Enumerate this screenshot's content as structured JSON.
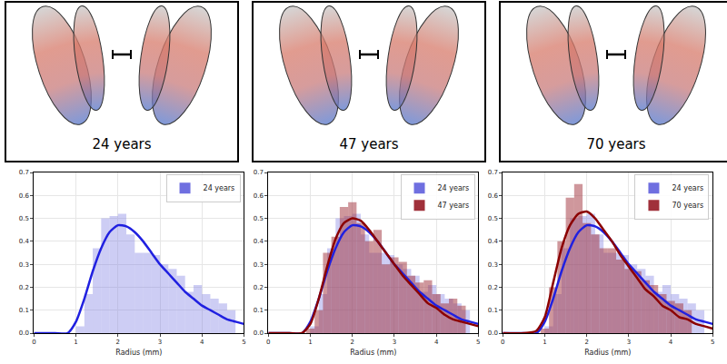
{
  "renderings": [
    "24 years",
    "47 years",
    "70 years"
  ],
  "chart_data": [
    {
      "type": "histogram",
      "x_label": "Radius (mm)",
      "xlim": [
        0,
        5
      ],
      "xticks": [
        0,
        1,
        2,
        3,
        4,
        5
      ],
      "ylim": [
        0,
        0.7
      ],
      "yticks": [
        {
          "value": 0,
          "label": "0.0"
        },
        0.1,
        0.2,
        0.3,
        0.4,
        0.5,
        0.6,
        0.7
      ],
      "grid": true,
      "legend": "upper right",
      "series": [
        {
          "name": "24 years",
          "color": "#6f6fe0",
          "bins": [
            1.0,
            1.2,
            1.4,
            1.6,
            1.8,
            2.0,
            2.2,
            2.4,
            2.6,
            2.8,
            3.0,
            3.2,
            3.4,
            3.6,
            3.8,
            4.0,
            4.2,
            4.4,
            4.6,
            4.8
          ],
          "values": [
            0.03,
            0.17,
            0.37,
            0.5,
            0.51,
            0.52,
            0.43,
            0.35,
            0.35,
            0.34,
            0.3,
            0.28,
            0.25,
            0.18,
            0.21,
            0.17,
            0.15,
            0.13,
            0.1
          ]
        },
        {
          "type": "line",
          "color": "#2020e0",
          "x": [
            0,
            0.5,
            0.8,
            1.0,
            1.2,
            1.4,
            1.6,
            1.8,
            2.0,
            2.2,
            2.4,
            2.6,
            2.8,
            3.0,
            3.2,
            3.4,
            3.6,
            3.8,
            4.0,
            4.2,
            4.4,
            4.6,
            4.8,
            5.0
          ],
          "values": [
            0,
            0,
            0,
            0.05,
            0.15,
            0.27,
            0.37,
            0.44,
            0.47,
            0.465,
            0.44,
            0.4,
            0.35,
            0.3,
            0.26,
            0.22,
            0.18,
            0.15,
            0.12,
            0.1,
            0.08,
            0.06,
            0.05,
            0.04
          ]
        }
      ]
    },
    {
      "type": "histogram",
      "x_label": "Radius (mm)",
      "xlim": [
        0,
        5
      ],
      "xticks": [
        0,
        1,
        2,
        3,
        4,
        5
      ],
      "ylim": [
        0,
        0.7
      ],
      "yticks": [
        {
          "value": 0,
          "label": "0.0"
        },
        0.1,
        0.2,
        0.3,
        0.4,
        0.5,
        0.6,
        0.7
      ],
      "grid": true,
      "legend": "upper right",
      "series": [
        {
          "name": "24 years",
          "color": "#6f6fe0",
          "bins": [
            1.0,
            1.2,
            1.4,
            1.6,
            1.8,
            2.0,
            2.2,
            2.4,
            2.6,
            2.8,
            3.0,
            3.2,
            3.4,
            3.6,
            3.8,
            4.0,
            4.2,
            4.4,
            4.6,
            4.8
          ],
          "values": [
            0.03,
            0.17,
            0.37,
            0.5,
            0.51,
            0.52,
            0.43,
            0.35,
            0.35,
            0.34,
            0.3,
            0.28,
            0.25,
            0.18,
            0.21,
            0.17,
            0.15,
            0.13,
            0.1
          ]
        },
        {
          "name": "47 years",
          "color": "#a0303a",
          "bins": [
            0.9,
            1.1,
            1.3,
            1.5,
            1.7,
            1.9,
            2.1,
            2.3,
            2.5,
            2.7,
            2.9,
            3.1,
            3.3,
            3.5,
            3.7,
            3.9,
            4.1,
            4.3,
            4.5,
            4.7
          ],
          "values": [
            0.02,
            0.1,
            0.35,
            0.42,
            0.55,
            0.57,
            0.48,
            0.4,
            0.45,
            0.3,
            0.33,
            0.31,
            0.25,
            0.22,
            0.23,
            0.17,
            0.13,
            0.15,
            0.12
          ]
        },
        {
          "type": "line",
          "color": "#2020e0",
          "x": [
            0,
            0.5,
            0.8,
            1.0,
            1.2,
            1.4,
            1.6,
            1.8,
            2.0,
            2.2,
            2.4,
            2.6,
            2.8,
            3.0,
            3.2,
            3.4,
            3.6,
            3.8,
            4.0,
            4.2,
            4.4,
            4.6,
            4.8,
            5.0
          ],
          "values": [
            0,
            0,
            0,
            0.05,
            0.15,
            0.27,
            0.37,
            0.44,
            0.47,
            0.465,
            0.44,
            0.4,
            0.35,
            0.3,
            0.26,
            0.22,
            0.18,
            0.15,
            0.12,
            0.1,
            0.08,
            0.06,
            0.05,
            0.04
          ]
        },
        {
          "type": "line",
          "color": "#8b0000",
          "x": [
            0,
            0.5,
            0.8,
            1.0,
            1.2,
            1.4,
            1.6,
            1.8,
            2.0,
            2.2,
            2.4,
            2.6,
            2.8,
            3.0,
            3.2,
            3.4,
            3.6,
            3.8,
            4.0,
            4.2,
            4.4,
            4.6,
            4.8,
            5.0
          ],
          "values": [
            0,
            0,
            0,
            0.04,
            0.15,
            0.29,
            0.41,
            0.48,
            0.5,
            0.49,
            0.45,
            0.4,
            0.35,
            0.3,
            0.25,
            0.21,
            0.17,
            0.13,
            0.11,
            0.08,
            0.06,
            0.05,
            0.04,
            0.03
          ]
        }
      ]
    },
    {
      "type": "histogram",
      "x_label": "Radius (mm)",
      "xlim": [
        0,
        5
      ],
      "xticks": [
        0,
        1,
        2,
        3,
        4,
        5
      ],
      "ylim": [
        0,
        0.7
      ],
      "yticks": [
        {
          "value": 0,
          "label": "0.0"
        },
        0.1,
        0.2,
        0.3,
        0.4,
        0.5,
        0.6,
        0.7
      ],
      "grid": true,
      "legend": "upper right",
      "series": [
        {
          "name": "24 years",
          "color": "#6f6fe0",
          "bins": [
            1.0,
            1.2,
            1.4,
            1.6,
            1.8,
            2.0,
            2.2,
            2.4,
            2.6,
            2.8,
            3.0,
            3.2,
            3.4,
            3.6,
            3.8,
            4.0,
            4.2,
            4.4,
            4.6,
            4.8
          ],
          "values": [
            0.03,
            0.17,
            0.37,
            0.5,
            0.51,
            0.52,
            0.43,
            0.35,
            0.35,
            0.34,
            0.3,
            0.28,
            0.25,
            0.18,
            0.21,
            0.17,
            0.15,
            0.13,
            0.1
          ]
        },
        {
          "name": "70 years",
          "color": "#a0303a",
          "bins": [
            0.9,
            1.1,
            1.3,
            1.5,
            1.7,
            1.9,
            2.1,
            2.3,
            2.5,
            2.7,
            2.9,
            3.1,
            3.3,
            3.5,
            3.7,
            3.9,
            4.1,
            4.3,
            4.5
          ],
          "values": [
            0.02,
            0.2,
            0.4,
            0.59,
            0.65,
            0.48,
            0.43,
            0.37,
            0.37,
            0.32,
            0.28,
            0.27,
            0.23,
            0.21,
            0.17,
            0.14,
            0.13,
            0.1
          ]
        },
        {
          "type": "line",
          "color": "#2020e0",
          "x": [
            0,
            0.5,
            0.8,
            1.0,
            1.2,
            1.4,
            1.6,
            1.8,
            2.0,
            2.2,
            2.4,
            2.6,
            2.8,
            3.0,
            3.2,
            3.4,
            3.6,
            3.8,
            4.0,
            4.2,
            4.4,
            4.6,
            4.8,
            5.0
          ],
          "values": [
            0,
            0,
            0,
            0.05,
            0.15,
            0.27,
            0.37,
            0.44,
            0.47,
            0.465,
            0.44,
            0.4,
            0.35,
            0.3,
            0.26,
            0.22,
            0.18,
            0.15,
            0.12,
            0.1,
            0.08,
            0.06,
            0.05,
            0.04
          ]
        },
        {
          "type": "line",
          "color": "#8b0000",
          "x": [
            0,
            0.5,
            0.8,
            1.0,
            1.2,
            1.4,
            1.6,
            1.8,
            2.0,
            2.2,
            2.4,
            2.6,
            2.8,
            3.0,
            3.2,
            3.4,
            3.6,
            3.8,
            4.0,
            4.2,
            4.4,
            4.6,
            4.8,
            5.0
          ],
          "values": [
            0,
            0,
            0.01,
            0.07,
            0.22,
            0.37,
            0.47,
            0.52,
            0.53,
            0.5,
            0.45,
            0.4,
            0.34,
            0.29,
            0.24,
            0.19,
            0.16,
            0.12,
            0.1,
            0.07,
            0.06,
            0.04,
            0.03,
            0.02
          ]
        }
      ]
    }
  ]
}
